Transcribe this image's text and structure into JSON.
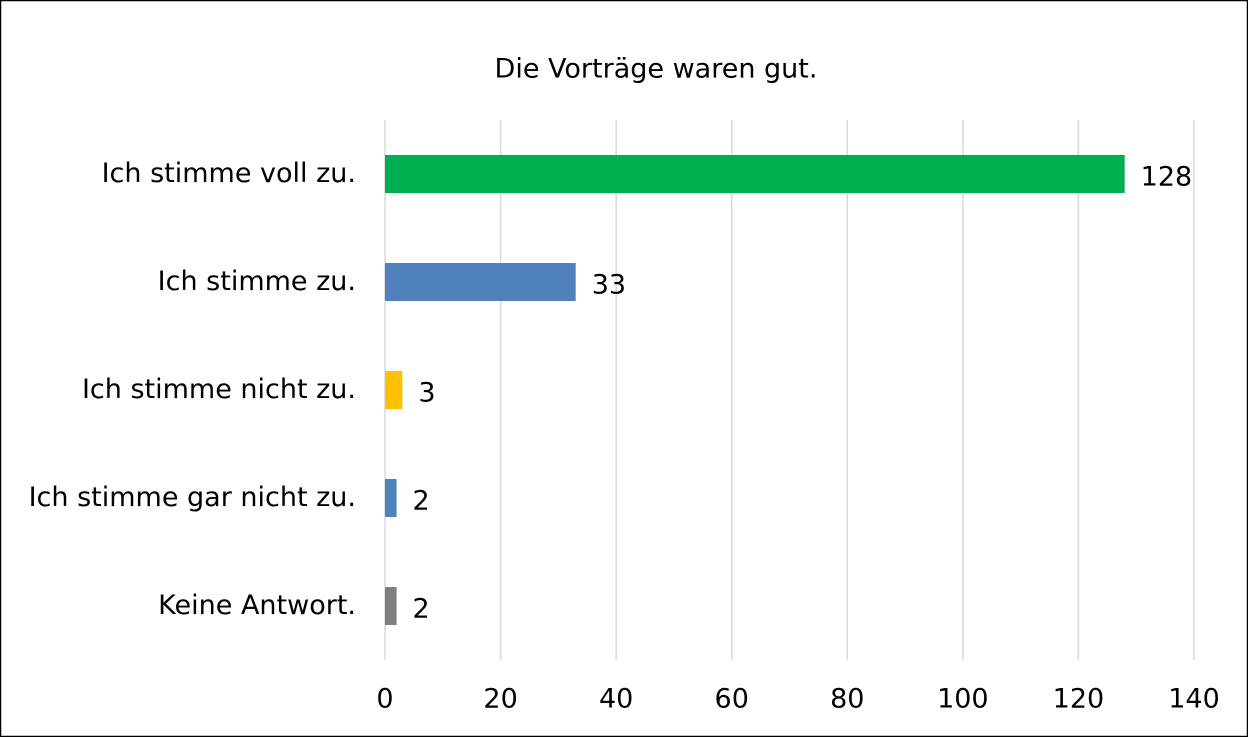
{
  "chart_data": {
    "type": "bar",
    "orientation": "horizontal",
    "title": "Die Vorträge waren gut.",
    "categories": [
      "Ich stimme voll zu.",
      "Ich stimme zu.",
      "Ich stimme nicht zu.",
      "Ich stimme gar nicht zu.",
      "Keine Antwort."
    ],
    "values": [
      128,
      33,
      3,
      2,
      2
    ],
    "colors": [
      "#00b050",
      "#4f81bd",
      "#ffc000",
      "#4f81bd",
      "#7f7f7f"
    ],
    "xlim": [
      0,
      140
    ],
    "xticks": [
      0,
      20,
      40,
      60,
      80,
      100,
      120,
      140
    ],
    "grid": true
  }
}
